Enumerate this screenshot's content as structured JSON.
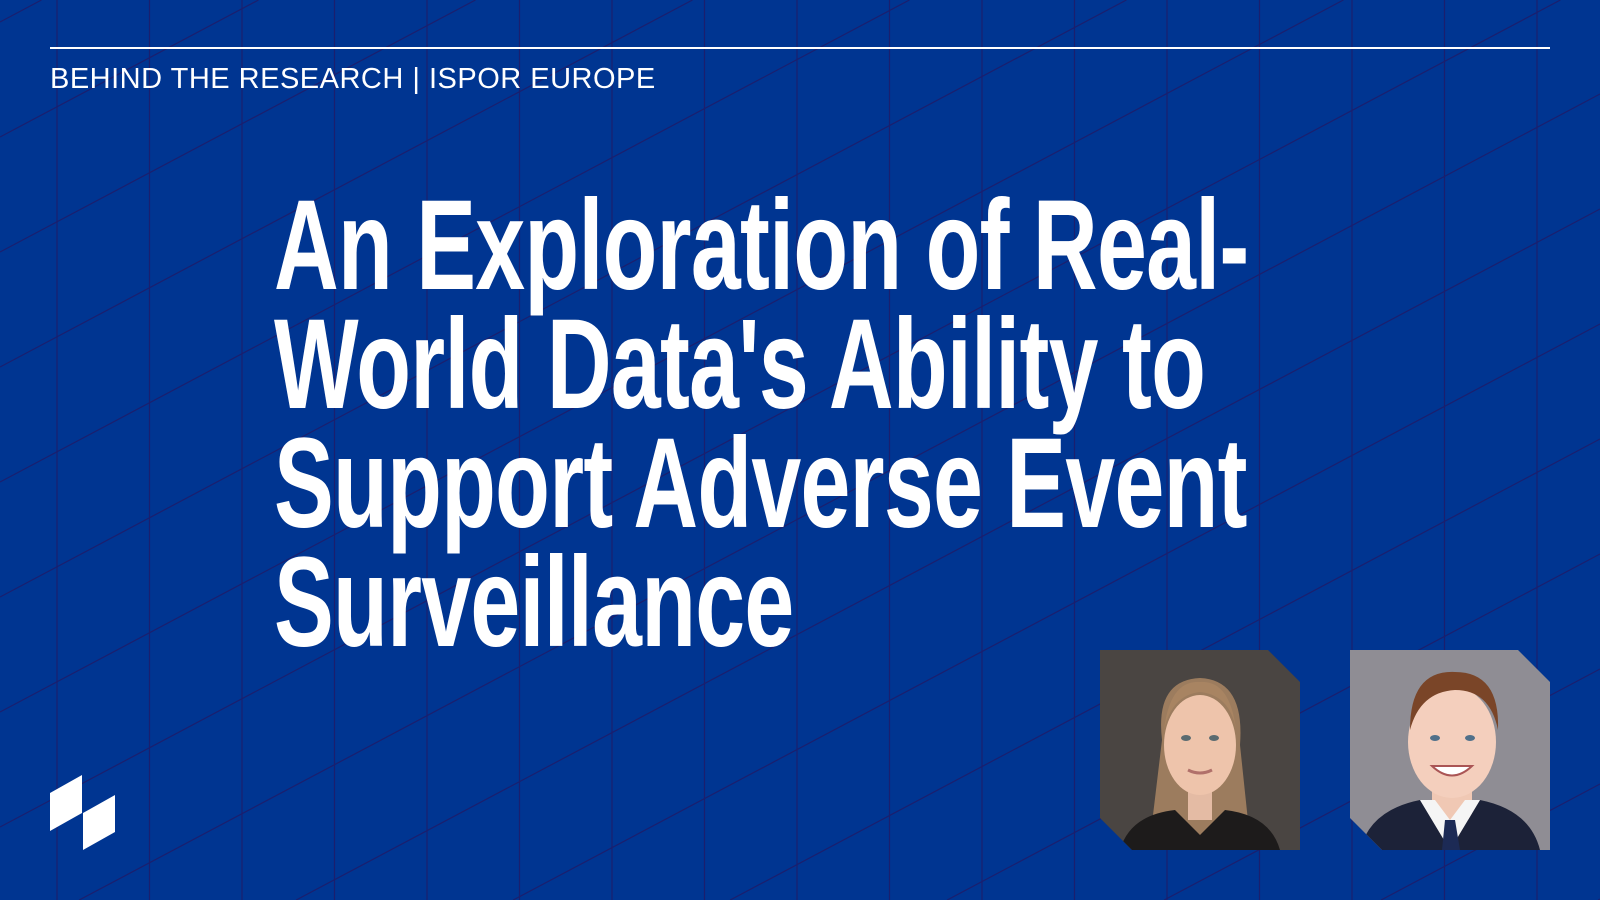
{
  "header": {
    "kicker": "BEHIND THE RESEARCH | ISPOR EUROPE"
  },
  "title": {
    "lines": [
      "An Exploration of Real-",
      "World Data's Ability to",
      "Support Adverse Event",
      "Surveillance"
    ]
  },
  "photos": [
    {
      "name": "speaker-photo-woman"
    },
    {
      "name": "speaker-photo-man"
    }
  ],
  "colors": {
    "background": "#003591",
    "grid_lines": "#1b1f6e",
    "text": "#ffffff"
  },
  "logo": {
    "icon": "brand-parallelogram-logo"
  }
}
